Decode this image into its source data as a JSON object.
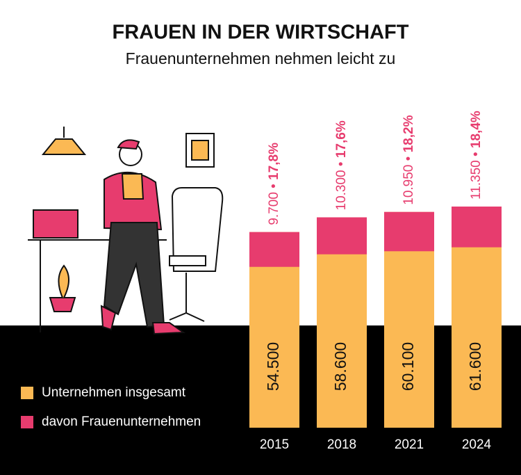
{
  "chart_data": {
    "type": "bar",
    "title": "FRAUEN IN DER WIRTSCHAFT",
    "subtitle": "Frauenunternehmen nehmen leicht zu",
    "categories": [
      "2015",
      "2018",
      "2021",
      "2024"
    ],
    "separator": "•",
    "series": [
      {
        "name": "Unternehmen insgesamt",
        "color": "#fbb954",
        "values": [
          54500,
          58600,
          60100,
          61600
        ],
        "value_labels": [
          "54.500",
          "58.600",
          "60.100",
          "61.600"
        ]
      },
      {
        "name": "davon Frauenunternehmen",
        "color": "#e73c6e",
        "values": [
          9700,
          10300,
          10950,
          11350
        ],
        "value_labels": [
          "9.700",
          "10.300",
          "10.950",
          "11.350"
        ],
        "shares": [
          17.8,
          17.6,
          18.2,
          18.4
        ],
        "share_labels": [
          "17,8%",
          "17,6%",
          "18,2%",
          "18,4%"
        ]
      }
    ]
  }
}
